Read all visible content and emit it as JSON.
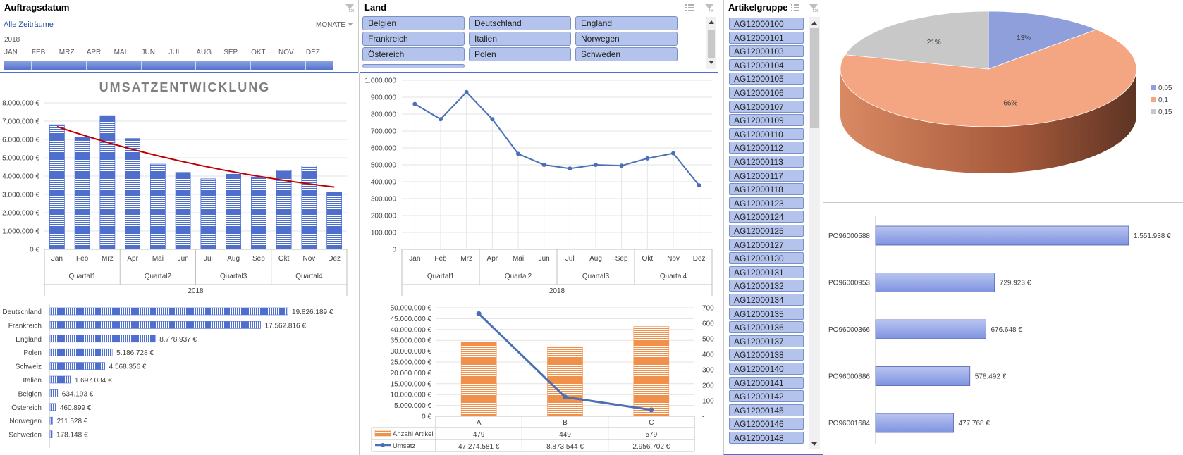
{
  "timeline": {
    "title": "Auftragsdatum",
    "range_label": "Alle Zeiträume",
    "level_label": "MONATE",
    "year": "2018",
    "months": [
      "JAN",
      "FEB",
      "MRZ",
      "APR",
      "MAI",
      "JUN",
      "JUL",
      "AUG",
      "SEP",
      "OKT",
      "NOV",
      "DEZ"
    ]
  },
  "land_slicer": {
    "title": "Land",
    "items": [
      "Belgien",
      "Deutschland",
      "England",
      "Frankreich",
      "Italien",
      "Norwegen",
      "Östereich",
      "Polen",
      "Schweden"
    ]
  },
  "artikel_slicer": {
    "title": "Artikelgruppe",
    "items": [
      "AG12000100",
      "AG12000101",
      "AG12000103",
      "AG12000104",
      "AG12000105",
      "AG12000106",
      "AG12000107",
      "AG12000109",
      "AG12000110",
      "AG12000112",
      "AG12000113",
      "AG12000117",
      "AG12000118",
      "AG12000123",
      "AG12000124",
      "AG12000125",
      "AG12000127",
      "AG12000130",
      "AG12000131",
      "AG12000132",
      "AG12000134",
      "AG12000135",
      "AG12000136",
      "AG12000137",
      "AG12000138",
      "AG12000140",
      "AG12000141",
      "AG12000142",
      "AG12000145",
      "AG12000146",
      "AG12000148"
    ]
  },
  "colors": {
    "bar_blue": "#4f6fcf",
    "line_blue": "#4a6fb5",
    "trend_red": "#c00000",
    "orange": "#f0904a",
    "pie_blue": "#8e9fdc",
    "pie_salmon": "#f4a582",
    "pie_gray": "#c8c8c8"
  },
  "chart_data": [
    {
      "id": "umsatz",
      "type": "bar",
      "title": "UMSATZENTWICKLUNG",
      "categories": [
        "Jan",
        "Feb",
        "Mrz",
        "Apr",
        "Mai",
        "Jun",
        "Jul",
        "Aug",
        "Sep",
        "Okt",
        "Nov",
        "Dez"
      ],
      "values": [
        6800000,
        6100000,
        7300000,
        6050000,
        4650000,
        4200000,
        3850000,
        4100000,
        3950000,
        4300000,
        4550000,
        3100000
      ],
      "trendline": [
        6700000,
        3400000
      ],
      "quarters": [
        "Quartal1",
        "Quartal2",
        "Quartal3",
        "Quartal4"
      ],
      "year": "2018",
      "ylim": [
        0,
        8000000
      ],
      "yticks": [
        "0 €",
        "1.000.000 €",
        "2.000.000 €",
        "3.000.000 €",
        "4.000.000 €",
        "5.000.000 €",
        "6.000.000 €",
        "7.000.000 €",
        "8.000.000 €"
      ]
    },
    {
      "id": "monthly-line",
      "type": "line",
      "categories": [
        "Jan",
        "Feb",
        "Mrz",
        "Apr",
        "Mai",
        "Jun",
        "Jul",
        "Aug",
        "Sep",
        "Okt",
        "Nov",
        "Dez"
      ],
      "values": [
        860000,
        770000,
        930000,
        770000,
        565000,
        500000,
        478000,
        500000,
        495000,
        538000,
        568000,
        378000
      ],
      "quarters": [
        "Quartal1",
        "Quartal2",
        "Quartal3",
        "Quartal4"
      ],
      "year": "2018",
      "ylim": [
        0,
        1000000
      ],
      "yticks": [
        "0",
        "100.000",
        "200.000",
        "300.000",
        "400.000",
        "500.000",
        "600.000",
        "700.000",
        "800.000",
        "900.000",
        "1.000.000"
      ]
    },
    {
      "id": "countries",
      "type": "bar",
      "orientation": "horizontal",
      "categories": [
        "Deutschland",
        "Frankreich",
        "England",
        "Polen",
        "Schweiz",
        "Italien",
        "Belgien",
        "Östereich",
        "Norwegen",
        "Schweden"
      ],
      "values": [
        19826189,
        17562816,
        8778937,
        5186728,
        4568356,
        1697034,
        634193,
        460899,
        211528,
        178148
      ],
      "labels": [
        "19.826.189 €",
        "17.562.816 €",
        "8.778.937 €",
        "5.186.728 €",
        "4.568.356 €",
        "1.697.034 €",
        "634.193 €",
        "460.899 €",
        "211.528 €",
        "178.148 €"
      ]
    },
    {
      "id": "abc",
      "type": "bar",
      "categories": [
        "A",
        "B",
        "C"
      ],
      "series": [
        {
          "name": "Anzahl Artikel",
          "values": [
            479,
            449,
            579
          ],
          "labels": [
            "479",
            "449",
            "579"
          ],
          "axis": "right"
        },
        {
          "name": "Umsatz",
          "values": [
            47274581,
            8873544,
            2956702
          ],
          "labels": [
            "47.274.581 €",
            "8.873.544 €",
            "2.956.702 €"
          ],
          "axis": "left"
        }
      ],
      "ylim_left": [
        0,
        50000000
      ],
      "ylim_right": [
        0,
        700
      ],
      "yticks_left": [
        "0 €",
        "5.000.000 €",
        "10.000.000 €",
        "15.000.000 €",
        "20.000.000 €",
        "25.000.000 €",
        "30.000.000 €",
        "35.000.000 €",
        "40.000.000 €",
        "45.000.000 €",
        "50.000.000 €"
      ],
      "yticks_right": [
        "-",
        "100",
        "200",
        "300",
        "400",
        "500",
        "600",
        "700"
      ]
    },
    {
      "id": "pie",
      "type": "pie",
      "values": [
        13,
        66,
        21
      ],
      "labels": [
        "13%",
        "66%",
        "21%"
      ],
      "legend": [
        "0,05",
        "0,1",
        "0,15"
      ]
    },
    {
      "id": "top-orders",
      "type": "bar",
      "orientation": "horizontal",
      "categories": [
        "PO96000588",
        "PO96000953",
        "PO96000366",
        "PO96000886",
        "PO96001684"
      ],
      "values": [
        1551938,
        729923,
        676648,
        578492,
        477768
      ],
      "labels": [
        "1.551.938 €",
        "729.923 €",
        "676.648 €",
        "578.492 €",
        "477.768 €"
      ]
    }
  ]
}
